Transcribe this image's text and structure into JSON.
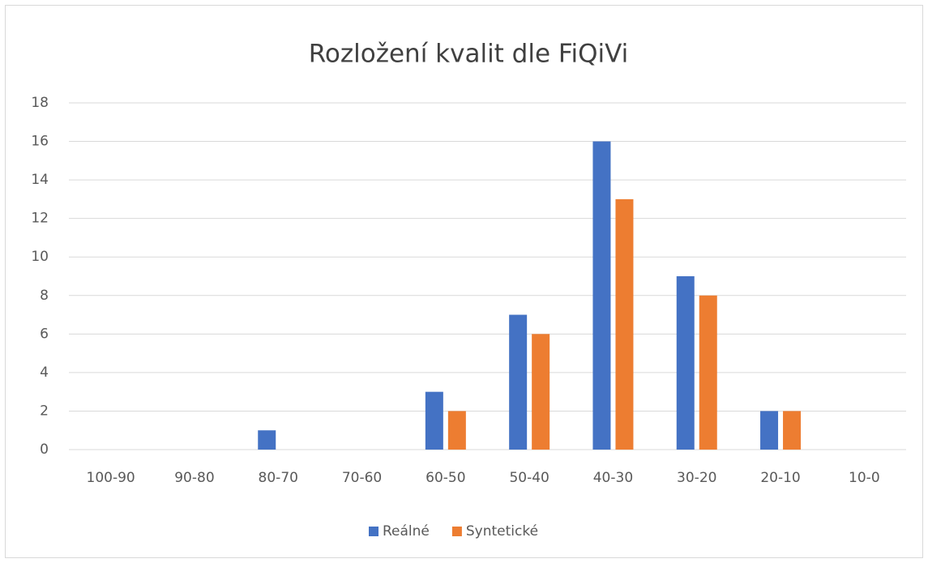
{
  "chart_data": {
    "type": "bar",
    "title": "Rozložení kvalit dle FiQiVi",
    "categories": [
      "100-90",
      "90-80",
      "80-70",
      "70-60",
      "60-50",
      "50-40",
      "40-30",
      "30-20",
      "20-10",
      "10-0"
    ],
    "series": [
      {
        "name": "Reálné",
        "color": "#4472c4",
        "values": [
          0,
          0,
          1,
          0,
          3,
          7,
          16,
          9,
          2,
          0
        ]
      },
      {
        "name": "Syntetické",
        "color": "#ed7d31",
        "values": [
          0,
          0,
          0,
          0,
          2,
          6,
          13,
          8,
          2,
          0
        ]
      }
    ],
    "ylim": [
      0,
      18
    ],
    "yticks": [
      0,
      2,
      4,
      6,
      8,
      10,
      12,
      14,
      16,
      18
    ],
    "grid": true,
    "legend": "bottom"
  }
}
